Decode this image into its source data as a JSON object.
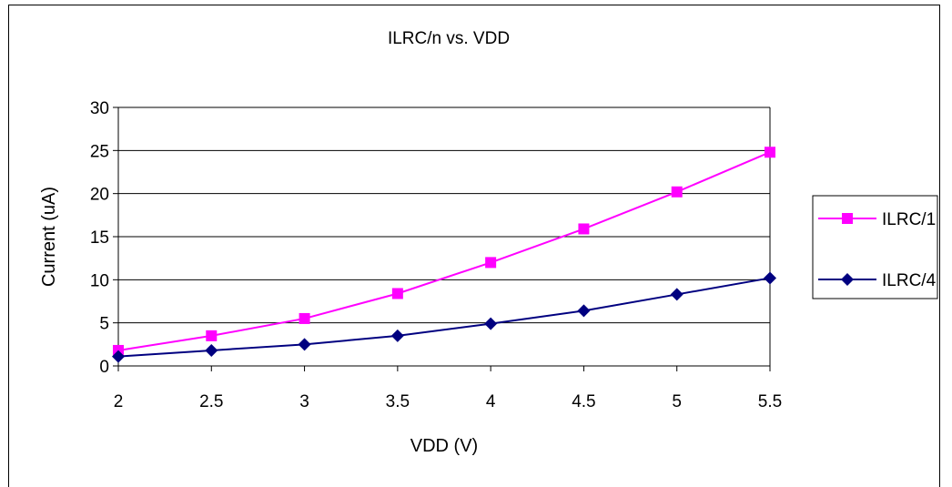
{
  "chart_data": {
    "type": "line",
    "title": "ILRC/n vs. VDD",
    "xlabel": "VDD (V)",
    "ylabel": "Current (uA)",
    "x": [
      2,
      2.5,
      3,
      3.5,
      4,
      4.5,
      5,
      5.5
    ],
    "x_tick_labels": [
      "2",
      "2.5",
      "3",
      "3.5",
      "4",
      "4.5",
      "5",
      "5.5"
    ],
    "ylim": [
      0,
      30
    ],
    "y_ticks": [
      0,
      5,
      10,
      15,
      20,
      25,
      30
    ],
    "grid": "horizontal",
    "legend_position": "right",
    "series": [
      {
        "name": "ILRC/1",
        "color": "#ff00ff",
        "marker": "square",
        "values": [
          1.8,
          3.5,
          5.5,
          8.4,
          12.0,
          15.9,
          20.2,
          24.8
        ]
      },
      {
        "name": "ILRC/4",
        "color": "#000080",
        "marker": "diamond",
        "values": [
          1.1,
          1.8,
          2.5,
          3.5,
          4.9,
          6.4,
          8.3,
          10.2
        ]
      }
    ]
  }
}
